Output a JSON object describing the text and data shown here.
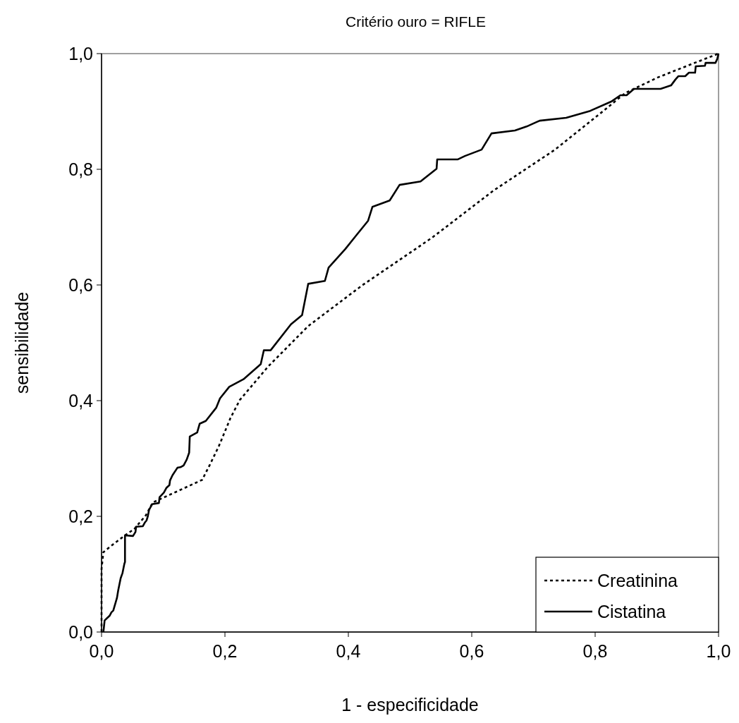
{
  "chart_data": {
    "type": "line",
    "title": "Critério ouro = RIFLE",
    "xlabel": "1 - especificidade",
    "ylabel": "sensibilidade",
    "xlim": [
      0,
      1
    ],
    "ylim": [
      0,
      1
    ],
    "xticks": [
      {
        "value": 0,
        "label": "0,0"
      },
      {
        "value": 0.2,
        "label": "0,2"
      },
      {
        "value": 0.4,
        "label": "0,4"
      },
      {
        "value": 0.6,
        "label": "0,6"
      },
      {
        "value": 0.8,
        "label": "0,8"
      },
      {
        "value": 1,
        "label": "1,0"
      }
    ],
    "yticks": [
      {
        "value": 0,
        "label": "0,0"
      },
      {
        "value": 0.2,
        "label": "0,2"
      },
      {
        "value": 0.4,
        "label": "0,4"
      },
      {
        "value": 0.6,
        "label": "0,6"
      },
      {
        "value": 0.8,
        "label": "0,8"
      },
      {
        "value": 1,
        "label": "1,0"
      }
    ],
    "grid": false,
    "legend": "bottom right",
    "marker": "none",
    "series": [
      {
        "name": "Creatinina",
        "color": "#000000",
        "line_style": "dotted",
        "x": [
          0,
          0,
          0.003,
          0.018,
          0.039,
          0.053,
          0.072,
          0.083,
          0.11,
          0.163,
          0.175,
          0.19,
          0.209,
          0.224,
          0.27,
          0.335,
          0.422,
          0.536,
          0.635,
          0.735,
          0.81,
          0.849,
          0.902,
          0.959,
          1
        ],
        "values": [
          0,
          0.109,
          0.138,
          0.151,
          0.168,
          0.178,
          0.202,
          0.224,
          0.237,
          0.263,
          0.288,
          0.321,
          0.37,
          0.401,
          0.459,
          0.529,
          0.599,
          0.682,
          0.763,
          0.834,
          0.898,
          0.932,
          0.959,
          0.983,
          1
        ]
      },
      {
        "name": "Cistatina",
        "color": "#000000",
        "line_style": "solid",
        "x": [
          0.003,
          0.005,
          0.009,
          0.013,
          0.016,
          0.019,
          0.022,
          0.025,
          0.027,
          0.031,
          0.034,
          0.037,
          0.038,
          0.038,
          0.051,
          0.055,
          0.056,
          0.067,
          0.07,
          0.073,
          0.075,
          0.077,
          0.082,
          0.093,
          0.094,
          0.101,
          0.105,
          0.11,
          0.111,
          0.115,
          0.123,
          0.128,
          0.133,
          0.138,
          0.142,
          0.143,
          0.155,
          0.159,
          0.169,
          0.186,
          0.192,
          0.207,
          0.23,
          0.258,
          0.263,
          0.274,
          0.307,
          0.325,
          0.335,
          0.362,
          0.368,
          0.395,
          0.41,
          0.432,
          0.439,
          0.467,
          0.483,
          0.517,
          0.543,
          0.544,
          0.577,
          0.589,
          0.616,
          0.632,
          0.67,
          0.689,
          0.71,
          0.753,
          0.792,
          0.826,
          0.841,
          0.851,
          0.863,
          0.906,
          0.923,
          0.93,
          0.935,
          0.946,
          0.952,
          0.962,
          0.963,
          0.978,
          0.979,
          0.995,
          0.998,
          1
        ],
        "values": [
          0,
          0.02,
          0.024,
          0.028,
          0.034,
          0.037,
          0.048,
          0.059,
          0.072,
          0.093,
          0.102,
          0.118,
          0.121,
          0.167,
          0.166,
          0.173,
          0.182,
          0.183,
          0.189,
          0.193,
          0.2,
          0.211,
          0.221,
          0.223,
          0.233,
          0.241,
          0.249,
          0.254,
          0.262,
          0.271,
          0.284,
          0.285,
          0.288,
          0.298,
          0.31,
          0.338,
          0.345,
          0.36,
          0.365,
          0.388,
          0.404,
          0.424,
          0.437,
          0.463,
          0.487,
          0.487,
          0.532,
          0.548,
          0.602,
          0.607,
          0.63,
          0.662,
          0.682,
          0.711,
          0.735,
          0.746,
          0.773,
          0.779,
          0.801,
          0.817,
          0.817,
          0.823,
          0.834,
          0.862,
          0.867,
          0.874,
          0.884,
          0.889,
          0.901,
          0.917,
          0.928,
          0.928,
          0.939,
          0.939,
          0.945,
          0.955,
          0.961,
          0.961,
          0.967,
          0.967,
          0.978,
          0.979,
          0.984,
          0.984,
          0.991,
          1
        ]
      }
    ]
  }
}
